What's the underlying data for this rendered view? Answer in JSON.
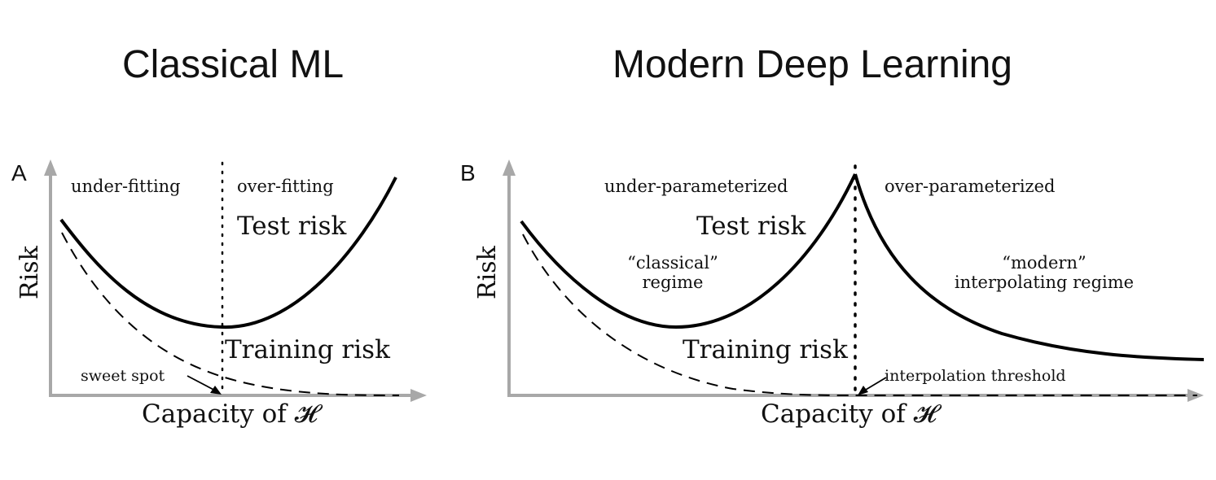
{
  "headings": {
    "left": "Classical ML",
    "right": "Modern Deep Learning"
  },
  "panel_a": {
    "letter": "A",
    "y_axis_label": "Risk",
    "x_axis_label": "Capacity of 𝓗",
    "region_left": "under-fitting",
    "region_right": "over-fitting",
    "test_label": "Test risk",
    "train_label": "Training risk",
    "annotation": "sweet spot"
  },
  "panel_b": {
    "letter": "B",
    "y_axis_label": "Risk",
    "x_axis_label": "Capacity of 𝓗",
    "region_left": "under-parameterized",
    "region_right": "over-parameterized",
    "test_label": "Test risk",
    "train_label": "Training risk",
    "regime_left_line1": "“classical”",
    "regime_left_line2": "regime",
    "regime_right_line1": "“modern”",
    "regime_right_line2": "interpolating regime",
    "annotation": "interpolation threshold"
  },
  "colors": {
    "axis": "#a8a8a8",
    "curve": "#000000",
    "text": "#111111"
  }
}
